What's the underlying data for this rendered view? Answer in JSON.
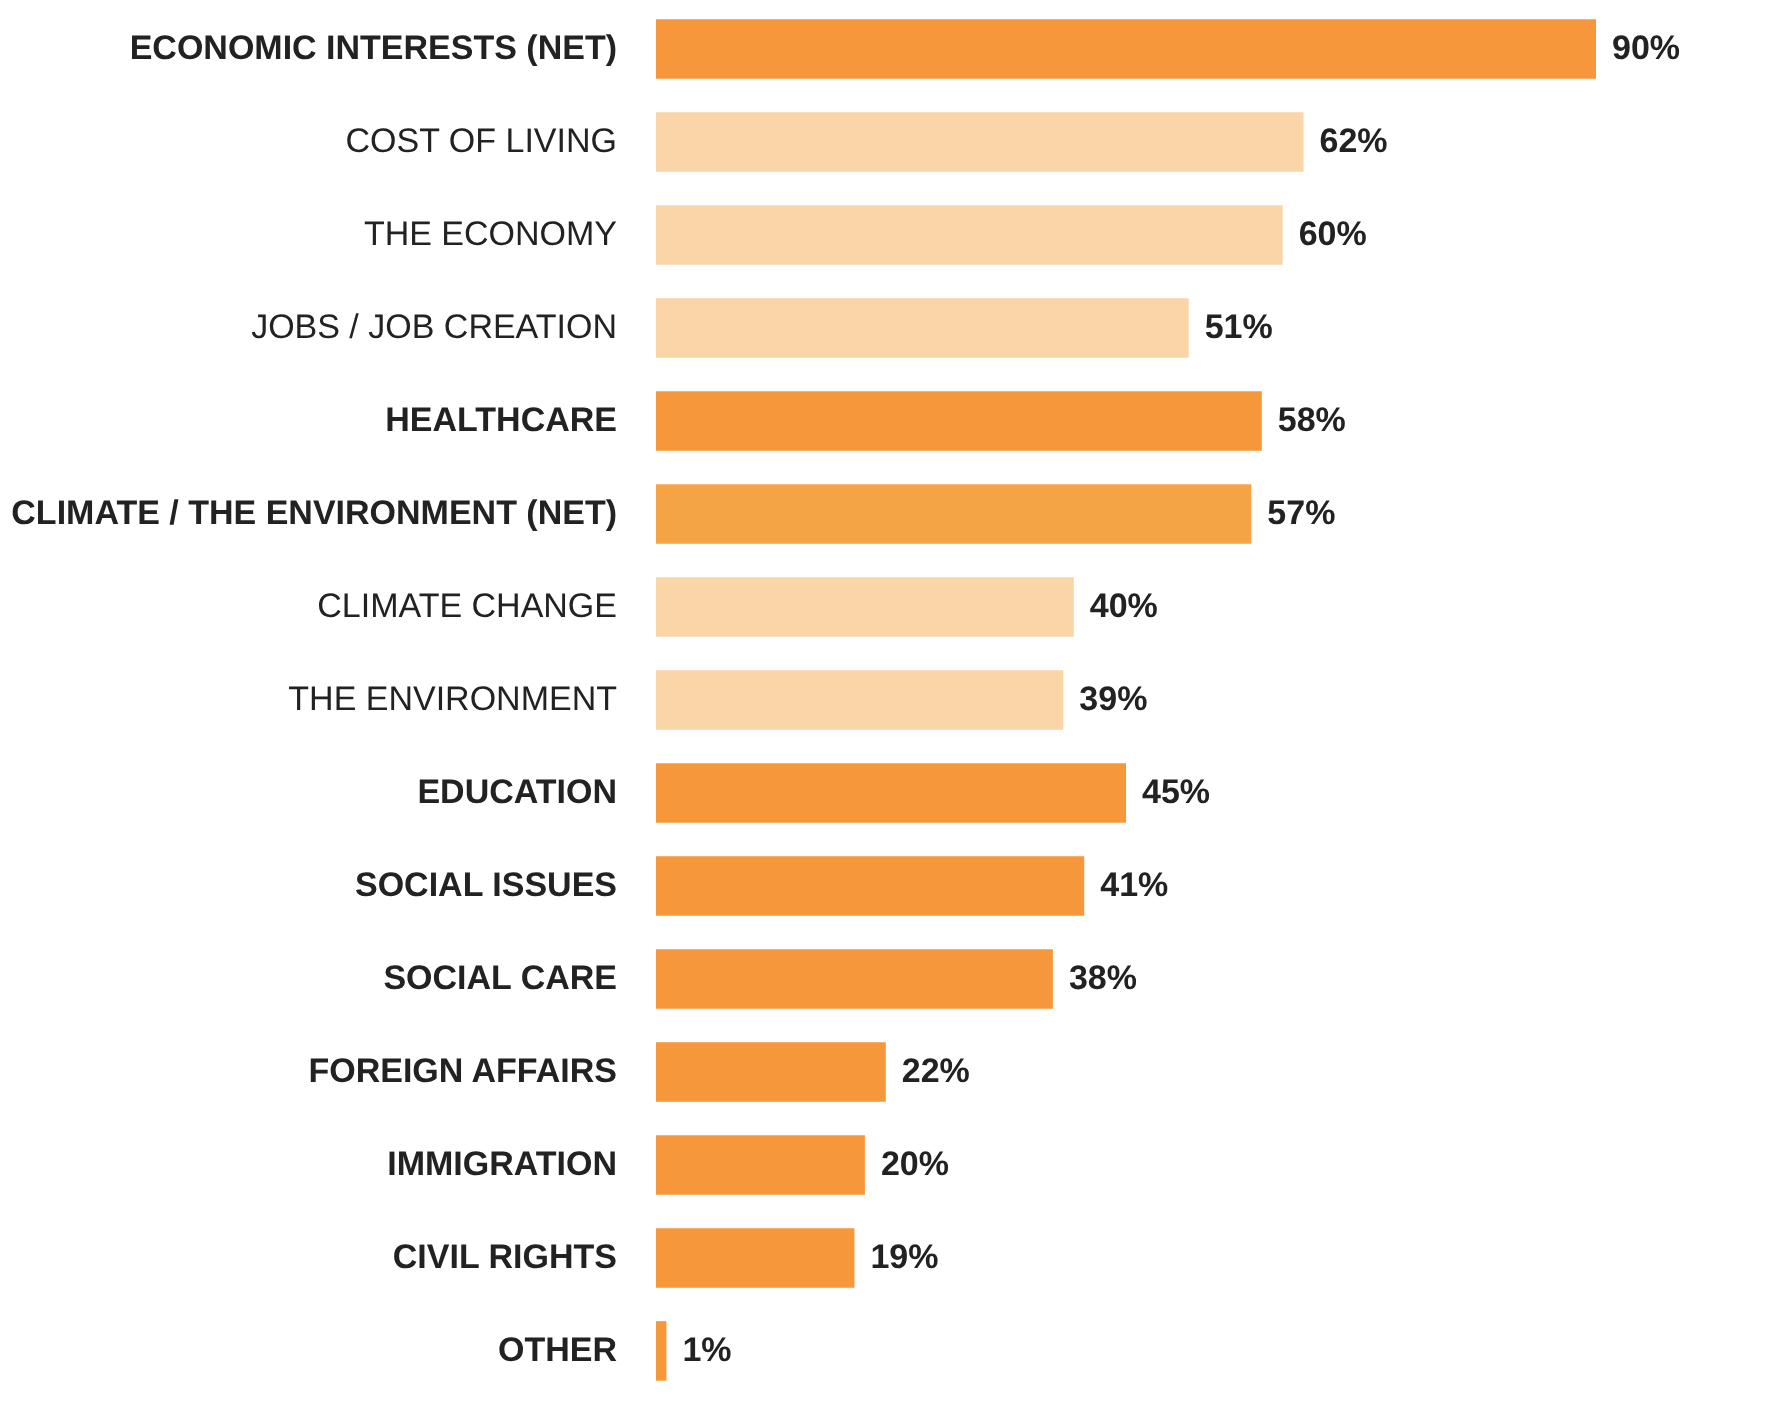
{
  "chart_data": {
    "type": "bar",
    "orientation": "horizontal",
    "categories": [
      "ECONOMIC INTERESTS (NET)",
      "COST OF LIVING",
      "THE ECONOMY",
      "JOBS / JOB CREATION",
      "HEALTHCARE",
      "CLIMATE / THE ENVIRONMENT (NET)",
      "CLIMATE CHANGE",
      "THE ENVIRONMENT",
      "EDUCATION",
      "SOCIAL ISSUES",
      "SOCIAL CARE",
      "FOREIGN AFFAIRS",
      "IMMIGRATION",
      "CIVIL RIGHTS",
      "OTHER"
    ],
    "values": [
      90,
      62,
      60,
      51,
      58,
      57,
      40,
      39,
      45,
      41,
      38,
      22,
      20,
      19,
      1
    ],
    "value_labels": [
      "90%",
      "62%",
      "60%",
      "51%",
      "58%",
      "57%",
      "40%",
      "39%",
      "45%",
      "41%",
      "38%",
      "22%",
      "20%",
      "19%",
      "1%"
    ],
    "colors": [
      "#f5973a",
      "#fad5a8",
      "#fad5a8",
      "#fad5a8",
      "#f5973a",
      "#f5a445",
      "#fad5a8",
      "#fad5a8",
      "#f5973a",
      "#f5973a",
      "#f5973a",
      "#f5973a",
      "#f5973a",
      "#f5973a",
      "#f5973a"
    ],
    "grid": false
  }
}
